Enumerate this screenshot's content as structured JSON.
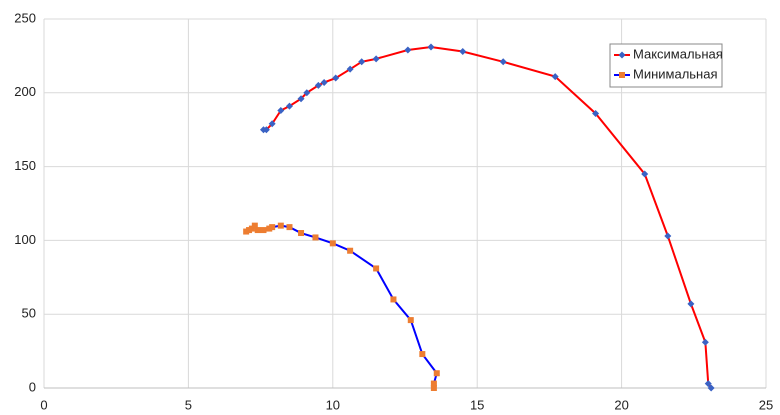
{
  "chart_data": {
    "type": "scatter",
    "series": [
      {
        "name": "Максимальная",
        "color": "#ff0000",
        "marker_color": "#3a62c4",
        "marker": "diamond",
        "x": [
          7.6,
          7.7,
          7.9,
          8.2,
          8.5,
          8.9,
          9.1,
          9.5,
          9.7,
          10.1,
          10.6,
          11.0,
          11.5,
          12.6,
          13.4,
          14.5,
          15.9,
          17.7,
          19.1,
          20.8,
          21.6,
          22.4,
          22.9,
          23.0,
          23.1
        ],
        "values": [
          175,
          175,
          179,
          188,
          191,
          196,
          200,
          205,
          207,
          210,
          216,
          221,
          223,
          229,
          231,
          228,
          221,
          211,
          186,
          145,
          103,
          57,
          31,
          3,
          0
        ]
      },
      {
        "name": "Минимальная",
        "color": "#0000ff",
        "marker_color": "#ed7d31",
        "marker": "square",
        "x": [
          7.0,
          7.1,
          7.2,
          7.3,
          7.4,
          7.6,
          7.8,
          7.9,
          8.2,
          8.5,
          8.9,
          9.4,
          10.0,
          10.6,
          11.5,
          12.1,
          12.7,
          13.1,
          13.6,
          13.5,
          13.5
        ],
        "values": [
          106,
          107,
          108,
          110,
          107,
          107,
          108,
          109,
          110,
          109,
          105,
          102,
          98,
          93,
          81,
          60,
          46,
          23,
          10,
          3,
          0
        ]
      }
    ],
    "xlim": [
      0,
      25
    ],
    "xticks": [
      0,
      5,
      10,
      15,
      20,
      25
    ],
    "ylim": [
      0,
      250
    ],
    "yticks": [
      0,
      50,
      100,
      150,
      200,
      250
    ],
    "grid": true,
    "legend": "top-right"
  }
}
